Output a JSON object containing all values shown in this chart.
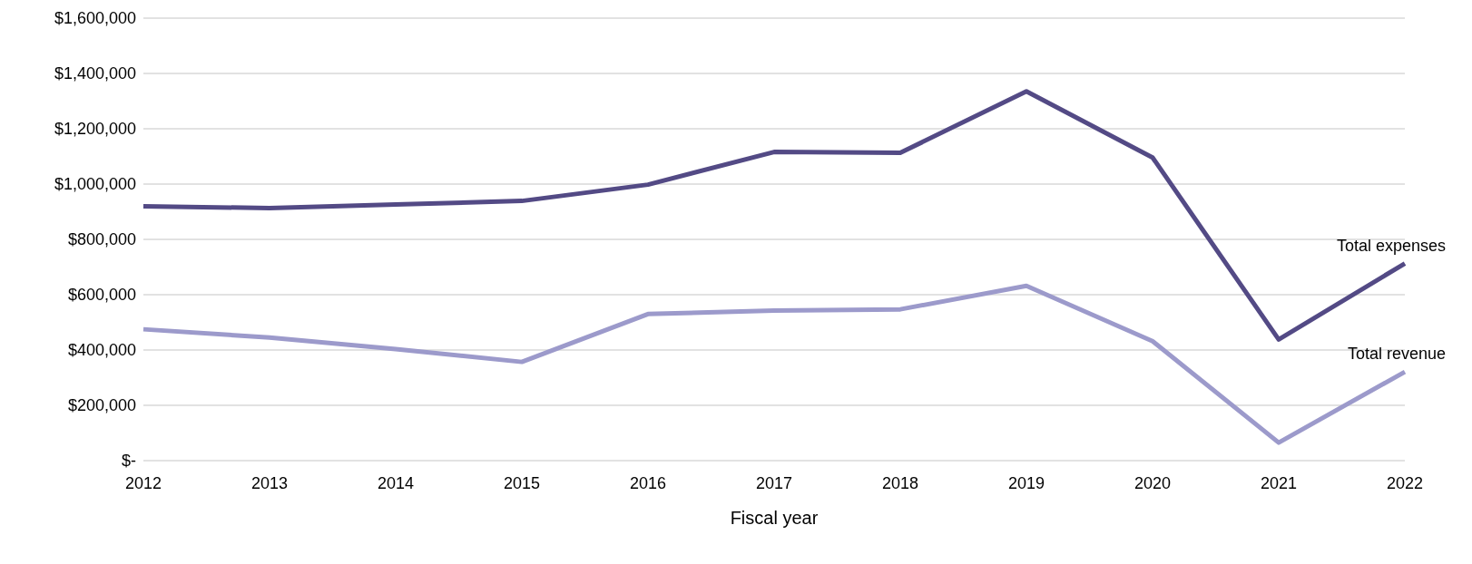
{
  "chart_data": {
    "type": "line",
    "xlabel": "Fiscal year",
    "categories": [
      "2012",
      "2013",
      "2014",
      "2015",
      "2016",
      "2017",
      "2018",
      "2019",
      "2020",
      "2021",
      "2022"
    ],
    "series": [
      {
        "name": "Total expenses",
        "color": "#534a85",
        "values": [
          920000,
          913000,
          926000,
          939000,
          998000,
          1116000,
          1113000,
          1335000,
          1096000,
          438000,
          713000
        ]
      },
      {
        "name": "Total revenue",
        "color": "#9c9acb",
        "values": [
          475000,
          445000,
          403000,
          357000,
          530000,
          543000,
          547000,
          632000,
          432000,
          65000,
          321000
        ]
      }
    ],
    "ylim": [
      0,
      1600000
    ],
    "yticks": [
      {
        "value": 0,
        "label": "$-"
      },
      {
        "value": 200000,
        "label": "$200,000"
      },
      {
        "value": 400000,
        "label": "$400,000"
      },
      {
        "value": 600000,
        "label": "$600,000"
      },
      {
        "value": 800000,
        "label": "$800,000"
      },
      {
        "value": 1000000,
        "label": "$1,000,000"
      },
      {
        "value": 1200000,
        "label": "$1,200,000"
      },
      {
        "value": 1400000,
        "label": "$1,400,000"
      },
      {
        "value": 1600000,
        "label": "$1,600,000"
      }
    ],
    "grid": "y",
    "marker": "none",
    "line_style": "solid"
  }
}
